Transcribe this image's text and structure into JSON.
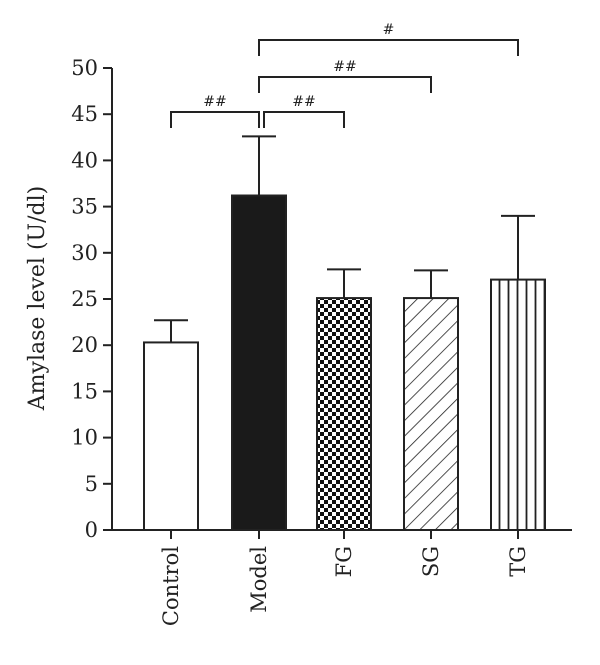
{
  "chart_data": {
    "type": "bar",
    "title": "",
    "xlabel": "",
    "ylabel": "Amylase level (U/dl)",
    "ylim": [
      0,
      50
    ],
    "yticks": [
      0,
      5,
      10,
      15,
      20,
      25,
      30,
      35,
      40,
      45,
      50
    ],
    "categories": [
      "Control",
      "Model",
      "FG",
      "SG",
      "TG"
    ],
    "values": [
      20.3,
      36.2,
      25.1,
      25.1,
      27.1
    ],
    "errors": [
      2.4,
      6.4,
      3.1,
      3.0,
      6.9
    ],
    "fills": [
      "white",
      "black",
      "checker",
      "diagonal",
      "vertical"
    ],
    "significance": [
      {
        "from": "Control",
        "to": "Model",
        "label": "##"
      },
      {
        "from": "Model",
        "to": "FG",
        "label": "##"
      },
      {
        "from": "Model",
        "to": "SG",
        "label": "##"
      },
      {
        "from": "Model",
        "to": "TG",
        "label": "#"
      }
    ]
  }
}
